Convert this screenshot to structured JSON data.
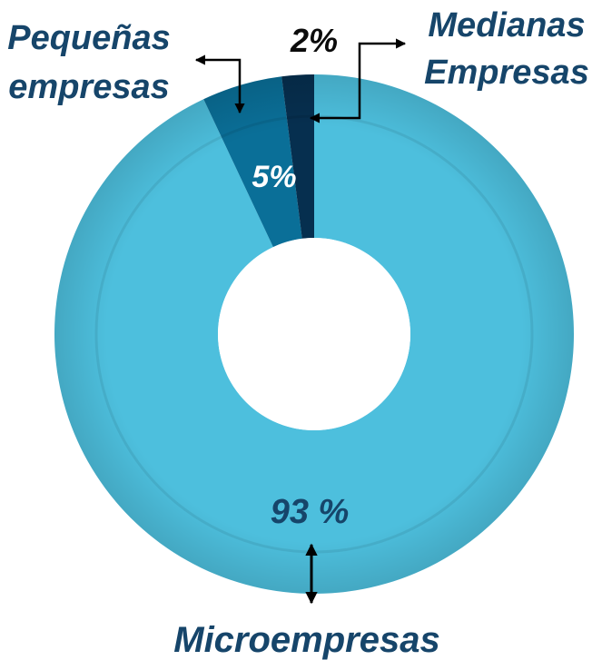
{
  "chart_data": {
    "type": "pie",
    "variant": "donut",
    "categories": [
      "Microempresas",
      "Pequeñas empresas",
      "Medianas Empresas"
    ],
    "values": [
      93,
      5,
      2
    ],
    "value_labels": [
      "93 %",
      "5%",
      "2%"
    ],
    "colors": [
      "#4dbfdd",
      "#0a6f98",
      "#062f4f"
    ],
    "legend": "none"
  },
  "labels": {
    "micro": "Microempresas",
    "pequenas_line1": "Pequeñas",
    "pequenas_line2": "empresas",
    "medianas_line1": "Medianas",
    "medianas_line2": "Empresas"
  },
  "colors": {
    "label_text": "#16456a",
    "dark_text": "#0b0b0b",
    "white_text": "#ffffff"
  }
}
